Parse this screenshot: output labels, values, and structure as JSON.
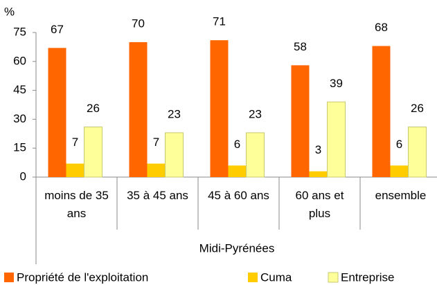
{
  "chart_data": {
    "type": "bar",
    "y_label": "%",
    "group_label": "Midi-Pyrénées",
    "categories": [
      "moins de 35 ans",
      "35 à 45 ans",
      "45 à 60 ans",
      "60 ans et plus",
      "ensemble"
    ],
    "series": [
      {
        "name": "Propriété de l'exploitation",
        "color": "#ff6600",
        "values": [
          67,
          70,
          71,
          58,
          68
        ]
      },
      {
        "name": "Cuma",
        "color": "#ffcc00",
        "values": [
          7,
          7,
          6,
          3,
          6
        ]
      },
      {
        "name": "Entreprise",
        "color": "#ffff99",
        "values": [
          26,
          23,
          23,
          39,
          26
        ]
      }
    ],
    "ylim": [
      0,
      75
    ],
    "yticks": [
      0,
      15,
      30,
      45,
      60,
      75
    ],
    "legend": "bottom"
  }
}
